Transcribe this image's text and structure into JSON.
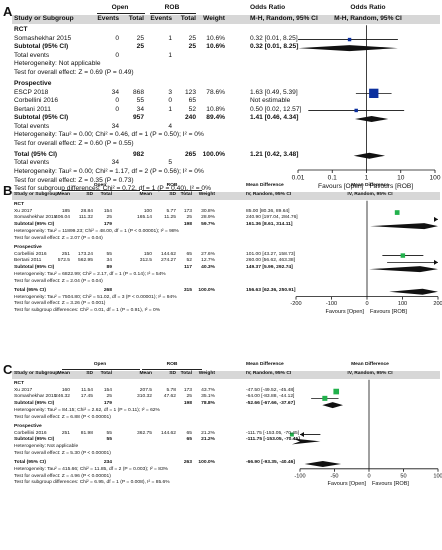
{
  "chart_data": [
    {
      "type": "forest",
      "panel": "A",
      "columns": {
        "study": "Study or Subgroup",
        "group1": "Open",
        "group2": "ROB",
        "events1": "Events",
        "total1": "Total",
        "events2": "Events",
        "total2": "Total",
        "weight": "Weight",
        "or_text": "Odds Ratio",
        "or_sub": "M-H, Random, 95% CI",
        "plot_head": "Odds Ratio",
        "plot_sub": "M-H, Random, 95% CI"
      },
      "axis": {
        "scale": "log",
        "ticks": [
          0.01,
          0.1,
          1,
          10,
          100
        ],
        "tick_labels": [
          "0.01",
          "0.1",
          "1",
          "10",
          "100"
        ],
        "left_label": "Favours [Open]",
        "right_label": "Favours [ROB]"
      },
      "subgroups": [
        {
          "name": "RCT",
          "studies": [
            {
              "study": "Somashekhar 2015",
              "e1": "0",
              "n1": "25",
              "e2": "1",
              "n2": "25",
              "weight": "10.6%",
              "ci": "0.32 [0.01, 8.25]",
              "est": 0.32,
              "lo": 0.01,
              "hi": 8.25
            }
          ],
          "subtotal": {
            "label": "Subtotal (95% CI)",
            "n1": "25",
            "n2": "25",
            "weight": "10.6%",
            "ci": "0.32 [0.01, 8.25]",
            "est": 0.32,
            "lo": 0.01,
            "hi": 8.25
          },
          "total_events": {
            "label": "Total events",
            "e1": "0",
            "e2": "1"
          },
          "heterogeneity": "Heterogeneity: Not applicable",
          "overall": "Test for overall effect: Z = 0.69 (P = 0.49)"
        },
        {
          "name": "Prospective",
          "studies": [
            {
              "study": "ESCP 2018",
              "e1": "34",
              "n1": "868",
              "e2": "3",
              "n2": "123",
              "weight": "78.6%",
              "ci": "1.63 [0.49, 5.39]",
              "est": 1.63,
              "lo": 0.49,
              "hi": 5.39
            },
            {
              "study": "Corbellini 2016",
              "e1": "0",
              "n1": "55",
              "e2": "0",
              "n2": "65",
              "weight": "",
              "ci": "Not estimable"
            },
            {
              "study": "Bertani 2011",
              "e1": "0",
              "n1": "34",
              "e2": "1",
              "n2": "52",
              "weight": "10.8%",
              "ci": "0.50 [0.02, 12.57]",
              "est": 0.5,
              "lo": 0.02,
              "hi": 12.57
            }
          ],
          "subtotal": {
            "label": "Subtotal (95% CI)",
            "n1": "957",
            "n2": "240",
            "weight": "89.4%",
            "ci": "1.41 [0.46, 4.34]",
            "est": 1.41,
            "lo": 0.46,
            "hi": 4.34
          },
          "total_events": {
            "label": "Total events",
            "e1": "34",
            "e2": "4"
          },
          "heterogeneity": "Heterogeneity: Tau² = 0.00; Chi² = 0.46, df = 1 (P = 0.50); I² = 0%",
          "overall": "Test for overall effect: Z = 0.60 (P = 0.55)"
        }
      ],
      "total": {
        "label": "Total (95% CI)",
        "n1": "982",
        "n2": "265",
        "weight": "100.0%",
        "ci": "1.21 [0.42, 3.48]",
        "est": 1.21,
        "lo": 0.42,
        "hi": 3.48
      },
      "total_events": {
        "label": "Total events",
        "e1": "34",
        "e2": "5"
      },
      "footer": [
        "Heterogeneity: Tau² = 0.00; Chi² = 1.17, df = 2 (P = 0.56); I² = 0%",
        "Test for overall effect: Z = 0.35 (P = 0.73)",
        "Test for subgroup differences: Chi² = 0.72, df = 1 (P = 0.40), I² = 0%"
      ]
    },
    {
      "type": "forest",
      "panel": "B",
      "columns": {
        "study": "Study or Subgroup",
        "group1": "Open",
        "group2": "ROB",
        "mean": "Mean",
        "sd": "SD",
        "total": "Total",
        "weight": "Weight",
        "md_text": "Mean Difference",
        "md_sub": "IV, Random, 95% CI",
        "plot_head": "Mean Difference",
        "plot_sub": "IV, Random, 95% CI"
      },
      "axis": {
        "scale": "linear",
        "ticks": [
          -200,
          -100,
          0,
          100,
          200
        ],
        "tick_labels": [
          "-200",
          "-100",
          "0",
          "100",
          "200"
        ],
        "left_label": "Favours [Open]",
        "right_label": "Favours [ROB]"
      },
      "subgroups": [
        {
          "name": "RCT",
          "studies": [
            {
              "study": "Xu 2017",
              "m1": "185",
              "sd1": "28.84",
              "n1": "154",
              "m2": "100",
              "sd2": "5.77",
              "n2": "173",
              "weight": "30.8%",
              "ci": "85.00 [80.36, 89.64]",
              "est": 85,
              "lo": 80.36,
              "hi": 89.64
            },
            {
              "study": "Somashekhar 2015",
              "m1": "406.04",
              "sd1": "111.32",
              "n1": "25",
              "m2": "165.14",
              "sd2": "11.25",
              "n2": "25",
              "weight": "28.9%",
              "ci": "240.90 [197.04, 284.76]",
              "est": 240.9,
              "lo": 197.04,
              "hi": 284.76
            }
          ],
          "subtotal": {
            "label": "Subtotal (95% CI)",
            "n1": "179",
            "n2": "198",
            "weight": "59.7%",
            "ci": "161.36 [8.61, 314.11]",
            "est": 161.36,
            "lo": 8.61,
            "hi": 314.11
          },
          "heterogeneity": "Heterogeneity: Tau² = 11899.23; Chi² = 48.00, df = 1 (P < 0.00001); I² = 98%",
          "overall": "Test for overall effect: Z = 2.07 (P = 0.04)"
        },
        {
          "name": "Prospective",
          "studies": [
            {
              "study": "Corbellini 2016",
              "m1": "251",
              "sd1": "173.24",
              "n1": "55",
              "m2": "150",
              "sd2": "144.62",
              "n2": "65",
              "weight": "27.6%",
              "ci": "101.00 [43.27, 158.73]",
              "est": 101,
              "lo": 43.27,
              "hi": 158.73
            },
            {
              "study": "Bertani 2011",
              "m1": "572.5",
              "sd1": "562.95",
              "n1": "34",
              "m2": "312.5",
              "sd2": "274.27",
              "n2": "52",
              "weight": "12.7%",
              "ci": "260.00 [56.62, 463.38]",
              "est": 260,
              "lo": 56.62,
              "hi": 463.38
            }
          ],
          "subtotal": {
            "label": "Subtotal (95% CI)",
            "n1": "89",
            "n2": "117",
            "weight": "40.3%",
            "ci": "149.37 [5.99, 292.74]",
            "est": 149.37,
            "lo": 5.99,
            "hi": 292.74
          },
          "heterogeneity": "Heterogeneity: Tau² = 6822.99; Chi² = 2.17, df = 1 (P = 0.14); I² = 54%",
          "overall": "Test for overall effect: Z = 2.04 (P = 0.04)"
        }
      ],
      "total": {
        "label": "Total (95% CI)",
        "n1": "268",
        "n2": "315",
        "weight": "100.0%",
        "ci": "156.63 [62.36, 250.91]",
        "est": 156.63,
        "lo": 62.36,
        "hi": 250.91
      },
      "footer": [
        "Heterogeneity: Tau² = 7504.80; Chi² = 51.02, df = 3 (P < 0.00001); I² = 94%",
        "Test for overall effect: Z = 3.26 (P = 0.001)",
        "Test for subgroup differences: Chi² = 0.01, df = 1 (P = 0.91), I² = 0%"
      ]
    },
    {
      "type": "forest",
      "panel": "C",
      "columns": {
        "study": "Study or Subgroup",
        "group1": "Open",
        "group2": "ROB",
        "mean": "Mean",
        "sd": "SD",
        "total": "Total",
        "weight": "Weight",
        "md_text": "Mean Difference",
        "md_sub": "IV, Random, 95% CI",
        "plot_head": "Mean Difference",
        "plot_sub": "IV, Random, 95% CI"
      },
      "axis": {
        "scale": "linear",
        "ticks": [
          -100,
          -50,
          0,
          50,
          100
        ],
        "tick_labels": [
          "-100",
          "-50",
          "0",
          "50",
          "100"
        ],
        "left_label": "Favours [Open]",
        "right_label": "Favours [ROB]"
      },
      "subgroups": [
        {
          "name": "RCT",
          "studies": [
            {
              "study": "Xu 2017",
              "m1": "160",
              "sd1": "11.54",
              "n1": "154",
              "m2": "207.5",
              "sd2": "5.78",
              "n2": "173",
              "weight": "43.7%",
              "ci": "-47.50 [-49.52, -45.48]",
              "est": -47.5,
              "lo": -49.52,
              "hi": -45.48
            },
            {
              "study": "Somashekhar 2015",
              "m1": "246.32",
              "sd1": "17.45",
              "n1": "25",
              "m2": "310.32",
              "sd2": "47.62",
              "n2": "25",
              "weight": "35.1%",
              "ci": "-64.00 [-83.88, -44.12]",
              "est": -64,
              "lo": -83.88,
              "hi": -44.12
            }
          ],
          "subtotal": {
            "label": "Subtotal (95% CI)",
            "n1": "179",
            "n2": "198",
            "weight": "78.8%",
            "ci": "-52.66 [-67.66, -37.67]",
            "est": -52.66,
            "lo": -67.66,
            "hi": -37.67
          },
          "heterogeneity": "Heterogeneity: Tau² = 84.15; Chi² = 2.62, df = 1 (P = 0.11); I² = 62%",
          "overall": "Test for overall effect: Z = 6.88 (P < 0.00001)"
        },
        {
          "name": "Prospective",
          "studies": [
            {
              "study": "Corbellini 2016",
              "m1": "251",
              "sd1": "81.98",
              "n1": "55",
              "m2": "362.75",
              "sd2": "144.62",
              "n2": "65",
              "weight": "21.2%",
              "ci": "-111.75 [-153.05, -70.45]",
              "est": -111.75,
              "lo": -153.05,
              "hi": -70.45
            }
          ],
          "subtotal": {
            "label": "Subtotal (95% CI)",
            "n1": "55",
            "n2": "65",
            "weight": "21.2%",
            "ci": "-111.75 [-153.05, -70.45]",
            "est": -111.75,
            "lo": -153.05,
            "hi": -70.45
          },
          "heterogeneity": "Heterogeneity: Not applicable",
          "overall": "Test for overall effect: Z = 5.30 (P < 0.00001)"
        }
      ],
      "total": {
        "label": "Total (95% CI)",
        "n1": "234",
        "n2": "263",
        "weight": "100.0%",
        "ci": "-66.90 [-93.35, -40.46]",
        "est": -66.9,
        "lo": -93.35,
        "hi": -40.46
      },
      "footer": [
        "Heterogeneity: Tau² = 415.66; Chi² = 11.85, df = 2 (P = 0.003); I² = 83%",
        "Test for overall effect: Z = 4.96 (P < 0.00001)",
        "Test for subgroup differences: Chi² = 6.95, df = 1 (P = 0.008), I² = 85.6%"
      ]
    }
  ]
}
